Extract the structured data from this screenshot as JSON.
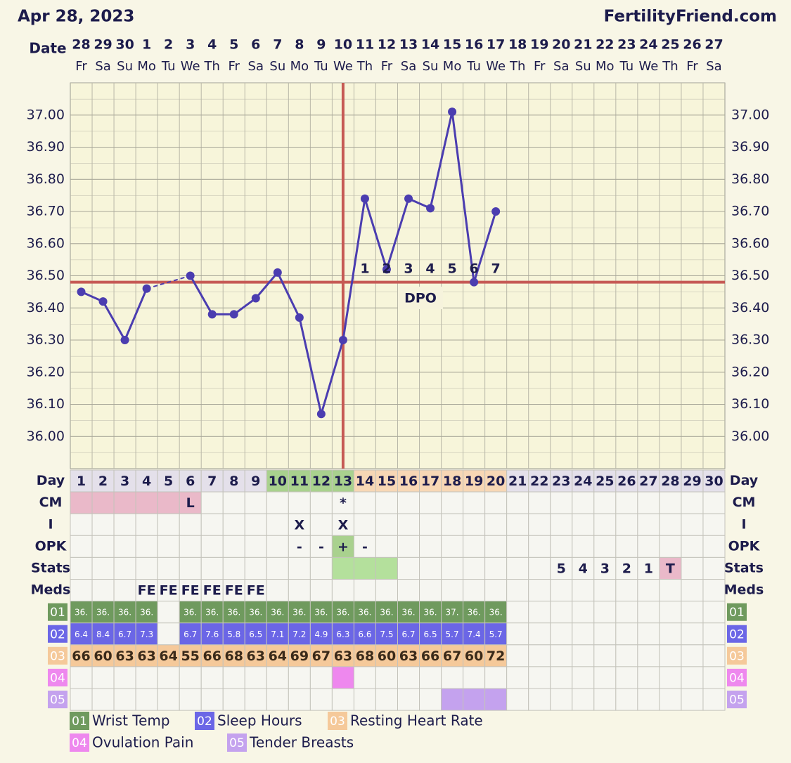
{
  "header": {
    "date": "Apr 28, 2023",
    "site": "FertilityFriend.com"
  },
  "chart_data": {
    "type": "line",
    "x_label": "Date",
    "categories": [
      "28",
      "29",
      "30",
      "1",
      "2",
      "3",
      "4",
      "5",
      "6",
      "7",
      "8",
      "9",
      "10",
      "11",
      "12",
      "13",
      "14",
      "15",
      "16",
      "17",
      "18",
      "19",
      "20",
      "21",
      "22",
      "23",
      "24",
      "25",
      "26",
      "27"
    ],
    "weekdays": [
      "Fr",
      "Sa",
      "Su",
      "Mo",
      "Tu",
      "We",
      "Th",
      "Fr",
      "Sa",
      "Su",
      "Mo",
      "Tu",
      "We",
      "Th",
      "Fr",
      "Sa",
      "Su",
      "Mo",
      "Tu",
      "We",
      "Th",
      "Fr",
      "Sa",
      "Su",
      "Mo",
      "Tu",
      "We",
      "Th",
      "Fr",
      "Sa"
    ],
    "values": [
      36.45,
      36.42,
      36.3,
      36.46,
      null,
      36.5,
      36.38,
      36.38,
      36.43,
      36.51,
      36.37,
      36.07,
      36.3,
      36.74,
      36.52,
      36.74,
      36.71,
      37.01,
      36.48,
      36.7,
      null,
      null,
      null,
      null,
      null,
      null,
      null,
      null,
      null,
      null
    ],
    "color": "#4b3db0",
    "ylim": [
      35.9,
      37.1
    ],
    "yticks": [
      {
        "value": 36,
        "label": "36.00"
      },
      {
        "value": 36.1,
        "label": "36.10"
      },
      {
        "value": 36.2,
        "label": "36.20"
      },
      {
        "value": 36.3,
        "label": "36.30"
      },
      {
        "value": 36.4,
        "label": "36.40"
      },
      {
        "value": 36.5,
        "label": "36.50"
      },
      {
        "value": 36.6,
        "label": "36.60"
      },
      {
        "value": 36.7,
        "label": "36.70"
      },
      {
        "value": 36.8,
        "label": "36.80"
      },
      {
        "value": 36.9,
        "label": "36.90"
      },
      {
        "value": 37,
        "label": "37.00"
      }
    ],
    "grid": true,
    "coverline": 36.48,
    "ovulation_day": 13,
    "marker_line_color": "#c65a55",
    "dpo_label": "DPO",
    "dpo": [
      null,
      null,
      null,
      null,
      null,
      null,
      null,
      null,
      null,
      null,
      null,
      null,
      null,
      1,
      2,
      3,
      4,
      5,
      6,
      7,
      null,
      null,
      null,
      null,
      null,
      null,
      null,
      null,
      null,
      null
    ]
  },
  "table": {
    "days": [
      1,
      2,
      3,
      4,
      5,
      6,
      7,
      8,
      9,
      10,
      11,
      12,
      13,
      14,
      15,
      16,
      17,
      18,
      19,
      20,
      21,
      22,
      23,
      24,
      25,
      26,
      27,
      28,
      29,
      30
    ],
    "rows": [
      {
        "label": "Day",
        "cells": [
          1,
          2,
          3,
          4,
          5,
          6,
          7,
          8,
          9,
          10,
          11,
          12,
          13,
          14,
          15,
          16,
          17,
          18,
          19,
          20,
          21,
          22,
          23,
          24,
          25,
          26,
          27,
          28,
          29,
          30
        ],
        "fills": [
          "#e4e0ea",
          "#e4e0ea",
          "#e4e0ea",
          "#e4e0ea",
          "#e4e0ea",
          "#e4e0ea",
          "#e4e0ea",
          "#e4e0ea",
          "#e4e0ea",
          "#a9d18e",
          "#a9d18e",
          "#a9d18e",
          "#a9d18e",
          "#f7d7b5",
          "#f7d7b5",
          "#f7d7b5",
          "#f7d7b5",
          "#f7d7b5",
          "#f7d7b5",
          "#f7d7b5",
          "#e4e0ea",
          "#e4e0ea",
          "#e4e0ea",
          "#e4e0ea",
          "#e4e0ea",
          "#e4e0ea",
          "#e4e0ea",
          "#e4e0ea",
          "#e4e0ea",
          "#e4e0ea"
        ]
      },
      {
        "label": "CM",
        "cells": [
          null,
          null,
          null,
          null,
          null,
          "L",
          null,
          null,
          null,
          null,
          null,
          null,
          "*",
          null,
          null,
          null,
          null,
          null,
          null,
          null,
          null,
          null,
          null,
          null,
          null,
          null,
          null,
          null,
          null,
          null
        ],
        "fills": [
          "#eab9c9",
          "#eab9c9",
          "#eab9c9",
          "#eab9c9",
          "#eab9c9",
          "#eab9c9",
          null,
          null,
          null,
          null,
          null,
          null,
          null,
          null,
          null,
          null,
          null,
          null,
          null,
          null,
          null,
          null,
          null,
          null,
          null,
          null,
          null,
          null,
          null,
          null
        ]
      },
      {
        "label": "I",
        "cells": [
          null,
          null,
          null,
          null,
          null,
          null,
          null,
          null,
          null,
          null,
          "X",
          null,
          "X",
          null,
          null,
          null,
          null,
          null,
          null,
          null,
          null,
          null,
          null,
          null,
          null,
          null,
          null,
          null,
          null,
          null
        ],
        "fills": [
          null,
          null,
          null,
          null,
          null,
          null,
          null,
          null,
          null,
          null,
          null,
          null,
          null,
          null,
          null,
          null,
          null,
          null,
          null,
          null,
          null,
          null,
          null,
          null,
          null,
          null,
          null,
          null,
          null,
          null
        ]
      },
      {
        "label": "OPK",
        "cells": [
          null,
          null,
          null,
          null,
          null,
          null,
          null,
          null,
          null,
          null,
          "-",
          "-",
          "+",
          "-",
          null,
          null,
          null,
          null,
          null,
          null,
          null,
          null,
          null,
          null,
          null,
          null,
          null,
          null,
          null,
          null
        ],
        "fills": [
          null,
          null,
          null,
          null,
          null,
          null,
          null,
          null,
          null,
          null,
          null,
          null,
          "#a9d18e",
          null,
          null,
          null,
          null,
          null,
          null,
          null,
          null,
          null,
          null,
          null,
          null,
          null,
          null,
          null,
          null,
          null
        ]
      },
      {
        "label": "Stats",
        "cells": [
          null,
          null,
          null,
          null,
          null,
          null,
          null,
          null,
          null,
          null,
          null,
          null,
          null,
          null,
          null,
          null,
          null,
          null,
          null,
          null,
          null,
          null,
          5,
          4,
          3,
          2,
          1,
          "T",
          null,
          null
        ],
        "fills": [
          null,
          null,
          null,
          null,
          null,
          null,
          null,
          null,
          null,
          null,
          null,
          null,
          "#b4e09c",
          "#b4e09c",
          "#b4e09c",
          null,
          null,
          null,
          null,
          null,
          null,
          null,
          null,
          null,
          null,
          null,
          null,
          "#eab9c9",
          null,
          null
        ]
      },
      {
        "label": "Meds",
        "cells": [
          null,
          null,
          null,
          "FE",
          "FE",
          "FE",
          "FE",
          "FE",
          "FE",
          null,
          null,
          null,
          null,
          null,
          null,
          null,
          null,
          null,
          null,
          null,
          null,
          null,
          null,
          null,
          null,
          null,
          null,
          null,
          null,
          null
        ],
        "fills": [
          null,
          null,
          null,
          null,
          null,
          null,
          null,
          null,
          null,
          null,
          null,
          null,
          null,
          null,
          null,
          null,
          null,
          null,
          null,
          null,
          null,
          null,
          null,
          null,
          null,
          null,
          null,
          null,
          null,
          null
        ]
      },
      {
        "label": "01",
        "label_color": "#6f9a5e",
        "text_color": "#ffffff",
        "cells": [
          "36.",
          "36.",
          "36.",
          "36.",
          null,
          "36.",
          "36.",
          "36.",
          "36.",
          "36.",
          "36.",
          "36.",
          "36.",
          "36.",
          "36.",
          "36.",
          "36.",
          "37.",
          "36.",
          "36.",
          null,
          null,
          null,
          null,
          null,
          null,
          null,
          null,
          null,
          null
        ],
        "fills": [
          "#6f9a5e",
          "#6f9a5e",
          "#6f9a5e",
          "#6f9a5e",
          null,
          "#6f9a5e",
          "#6f9a5e",
          "#6f9a5e",
          "#6f9a5e",
          "#6f9a5e",
          "#6f9a5e",
          "#6f9a5e",
          "#6f9a5e",
          "#6f9a5e",
          "#6f9a5e",
          "#6f9a5e",
          "#6f9a5e",
          "#6f9a5e",
          "#6f9a5e",
          "#6f9a5e",
          null,
          null,
          null,
          null,
          null,
          null,
          null,
          null,
          null,
          null
        ]
      },
      {
        "label": "02",
        "label_color": "#6b66e6",
        "text_color": "#ffffff",
        "cells": [
          6.4,
          8.4,
          6.7,
          7.3,
          null,
          6.7,
          7.6,
          5.8,
          6.5,
          7.1,
          7.2,
          4.9,
          6.3,
          6.6,
          7.5,
          6.7,
          6.5,
          5.7,
          7.4,
          5.7,
          null,
          null,
          null,
          null,
          null,
          null,
          null,
          null,
          null,
          null
        ],
        "fills": [
          "#6b66e6",
          "#6b66e6",
          "#6b66e6",
          "#6b66e6",
          null,
          "#6b66e6",
          "#6b66e6",
          "#6b66e6",
          "#6b66e6",
          "#6b66e6",
          "#6b66e6",
          "#6b66e6",
          "#6b66e6",
          "#6b66e6",
          "#6b66e6",
          "#6b66e6",
          "#6b66e6",
          "#6b66e6",
          "#6b66e6",
          "#6b66e6",
          null,
          null,
          null,
          null,
          null,
          null,
          null,
          null,
          null,
          null
        ]
      },
      {
        "label": "03",
        "label_color": "#f5c99a",
        "text_color": "#3a2a1a",
        "cells": [
          66,
          60,
          63,
          63,
          64,
          55,
          66,
          68,
          63,
          64,
          69,
          67,
          63,
          68,
          60,
          63,
          66,
          67,
          60,
          72,
          null,
          null,
          null,
          null,
          null,
          null,
          null,
          null,
          null,
          null
        ],
        "fills": [
          "#f5c99a",
          "#f5c99a",
          "#f5c99a",
          "#f5c99a",
          "#f5c99a",
          "#f5c99a",
          "#f5c99a",
          "#f5c99a",
          "#f5c99a",
          "#f5c99a",
          "#f5c99a",
          "#f5c99a",
          "#f5c99a",
          "#f5c99a",
          "#f5c99a",
          "#f5c99a",
          "#f5c99a",
          "#f5c99a",
          "#f5c99a",
          "#f5c99a",
          null,
          null,
          null,
          null,
          null,
          null,
          null,
          null,
          null,
          null
        ]
      },
      {
        "label": "04",
        "label_color": "#ee88ee",
        "cells": [
          null,
          null,
          null,
          null,
          null,
          null,
          null,
          null,
          null,
          null,
          null,
          null,
          null,
          null,
          null,
          null,
          null,
          null,
          null,
          null,
          null,
          null,
          null,
          null,
          null,
          null,
          null,
          null,
          null,
          null
        ],
        "fills": [
          null,
          null,
          null,
          null,
          null,
          null,
          null,
          null,
          null,
          null,
          null,
          null,
          "#ee88ee",
          null,
          null,
          null,
          null,
          null,
          null,
          null,
          null,
          null,
          null,
          null,
          null,
          null,
          null,
          null,
          null,
          null
        ]
      },
      {
        "label": "05",
        "label_color": "#c4a2ee",
        "cells": [
          null,
          null,
          null,
          null,
          null,
          null,
          null,
          null,
          null,
          null,
          null,
          null,
          null,
          null,
          null,
          null,
          null,
          null,
          null,
          null,
          null,
          null,
          null,
          null,
          null,
          null,
          null,
          null,
          null,
          null
        ],
        "fills": [
          null,
          null,
          null,
          null,
          null,
          null,
          null,
          null,
          null,
          null,
          null,
          null,
          null,
          null,
          null,
          null,
          null,
          "#c4a2ee",
          "#c4a2ee",
          "#c4a2ee",
          null,
          null,
          null,
          null,
          null,
          null,
          null,
          null,
          null,
          null
        ]
      }
    ]
  },
  "legend": [
    {
      "code": "01",
      "name": "Wrist Temp",
      "color": "#6f9a5e"
    },
    {
      "code": "02",
      "name": "Sleep Hours",
      "color": "#6b66e6"
    },
    {
      "code": "03",
      "name": "Resting Heart Rate",
      "color": "#f5c99a"
    },
    {
      "code": "04",
      "name": "Ovulation Pain",
      "color": "#ee88ee"
    },
    {
      "code": "05",
      "name": "Tender Breasts",
      "color": "#c4a2ee"
    }
  ]
}
